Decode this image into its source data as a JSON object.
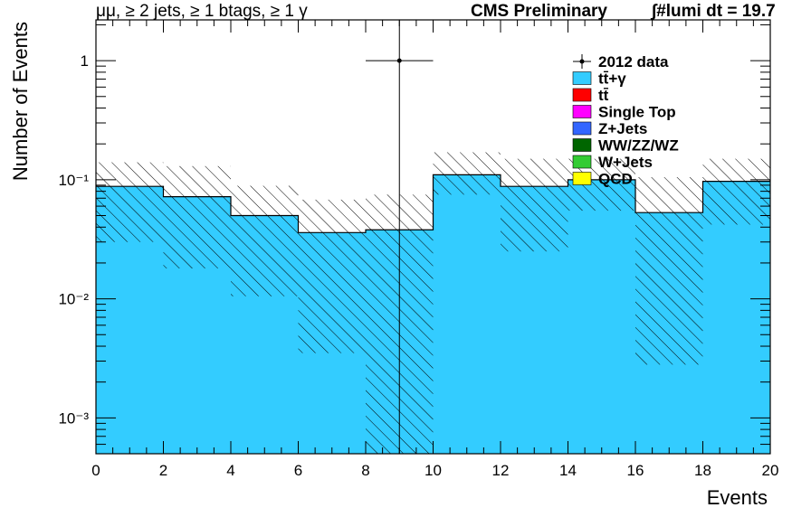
{
  "header": {
    "selection": "μμ, ≥ 2 jets, ≥ 1 btags, ≥ 1 γ",
    "experiment": "CMS Preliminary",
    "lumi": "∫#lumi dt = 19.7"
  },
  "chart_data": {
    "type": "bar",
    "subtype": "stacked-histogram",
    "xlabel": "Events",
    "ylabel": "Number of Events",
    "xlim": [
      0,
      20
    ],
    "ylim": [
      0.0005,
      2.2
    ],
    "yscale": "log",
    "grid": false,
    "legend_position": "top-right",
    "x_ticks": [
      0,
      2,
      4,
      6,
      8,
      10,
      12,
      14,
      16,
      18,
      20
    ],
    "y_ticks": [
      {
        "value": 0.001,
        "label": "10⁻³"
      },
      {
        "value": 0.01,
        "label": "10⁻²"
      },
      {
        "value": 0.1,
        "label": "10⁻¹"
      },
      {
        "value": 1,
        "label": "1"
      }
    ],
    "bin_edges": [
      0,
      2,
      4,
      6,
      8,
      10,
      12,
      14,
      16,
      18,
      20
    ],
    "series": [
      {
        "name": "tt̄+γ",
        "color": "#33ccff",
        "values": [
          0.088,
          0.072,
          0.05,
          0.036,
          0.038,
          0.11,
          0.088,
          0.1,
          0.053,
          0.097
        ]
      },
      {
        "name": "tt̄",
        "color": "#ff0000",
        "values": [
          0,
          0,
          0,
          0,
          0,
          0,
          0,
          0,
          0,
          0
        ]
      },
      {
        "name": "Single Top",
        "color": "#ff00ff",
        "values": [
          0,
          0,
          0,
          0,
          0,
          0,
          0,
          0,
          0,
          0
        ]
      },
      {
        "name": "Z+Jets",
        "color": "#3366ff",
        "values": [
          0,
          0,
          0,
          0,
          0,
          0,
          0,
          0,
          0,
          0
        ]
      },
      {
        "name": "WW/ZZ/WZ",
        "color": "#006600",
        "values": [
          0,
          0,
          0,
          0,
          0,
          0,
          0,
          0,
          0,
          0
        ]
      },
      {
        "name": "W+Jets",
        "color": "#33cc33",
        "values": [
          0,
          0,
          0,
          0,
          0,
          0,
          0,
          0,
          0,
          0
        ]
      },
      {
        "name": "QCD",
        "color": "#ffff00",
        "values": [
          0,
          0,
          0,
          0,
          0,
          0,
          0,
          0,
          0,
          0
        ]
      }
    ],
    "uncertainty_band": {
      "low": [
        0.03,
        0.018,
        0.0105,
        0.0035,
        0.0004,
        0.075,
        0.025,
        0.055,
        0.0028,
        0.042
      ],
      "high": [
        0.14,
        0.13,
        0.089,
        0.068,
        0.075,
        0.17,
        0.15,
        0.15,
        0.105,
        0.15
      ]
    },
    "data": {
      "name": "2012 data",
      "points": [
        {
          "x": 9,
          "y": 1,
          "xerr": 1,
          "y_low": 0.0004,
          "y_high": 2.2
        }
      ]
    }
  }
}
